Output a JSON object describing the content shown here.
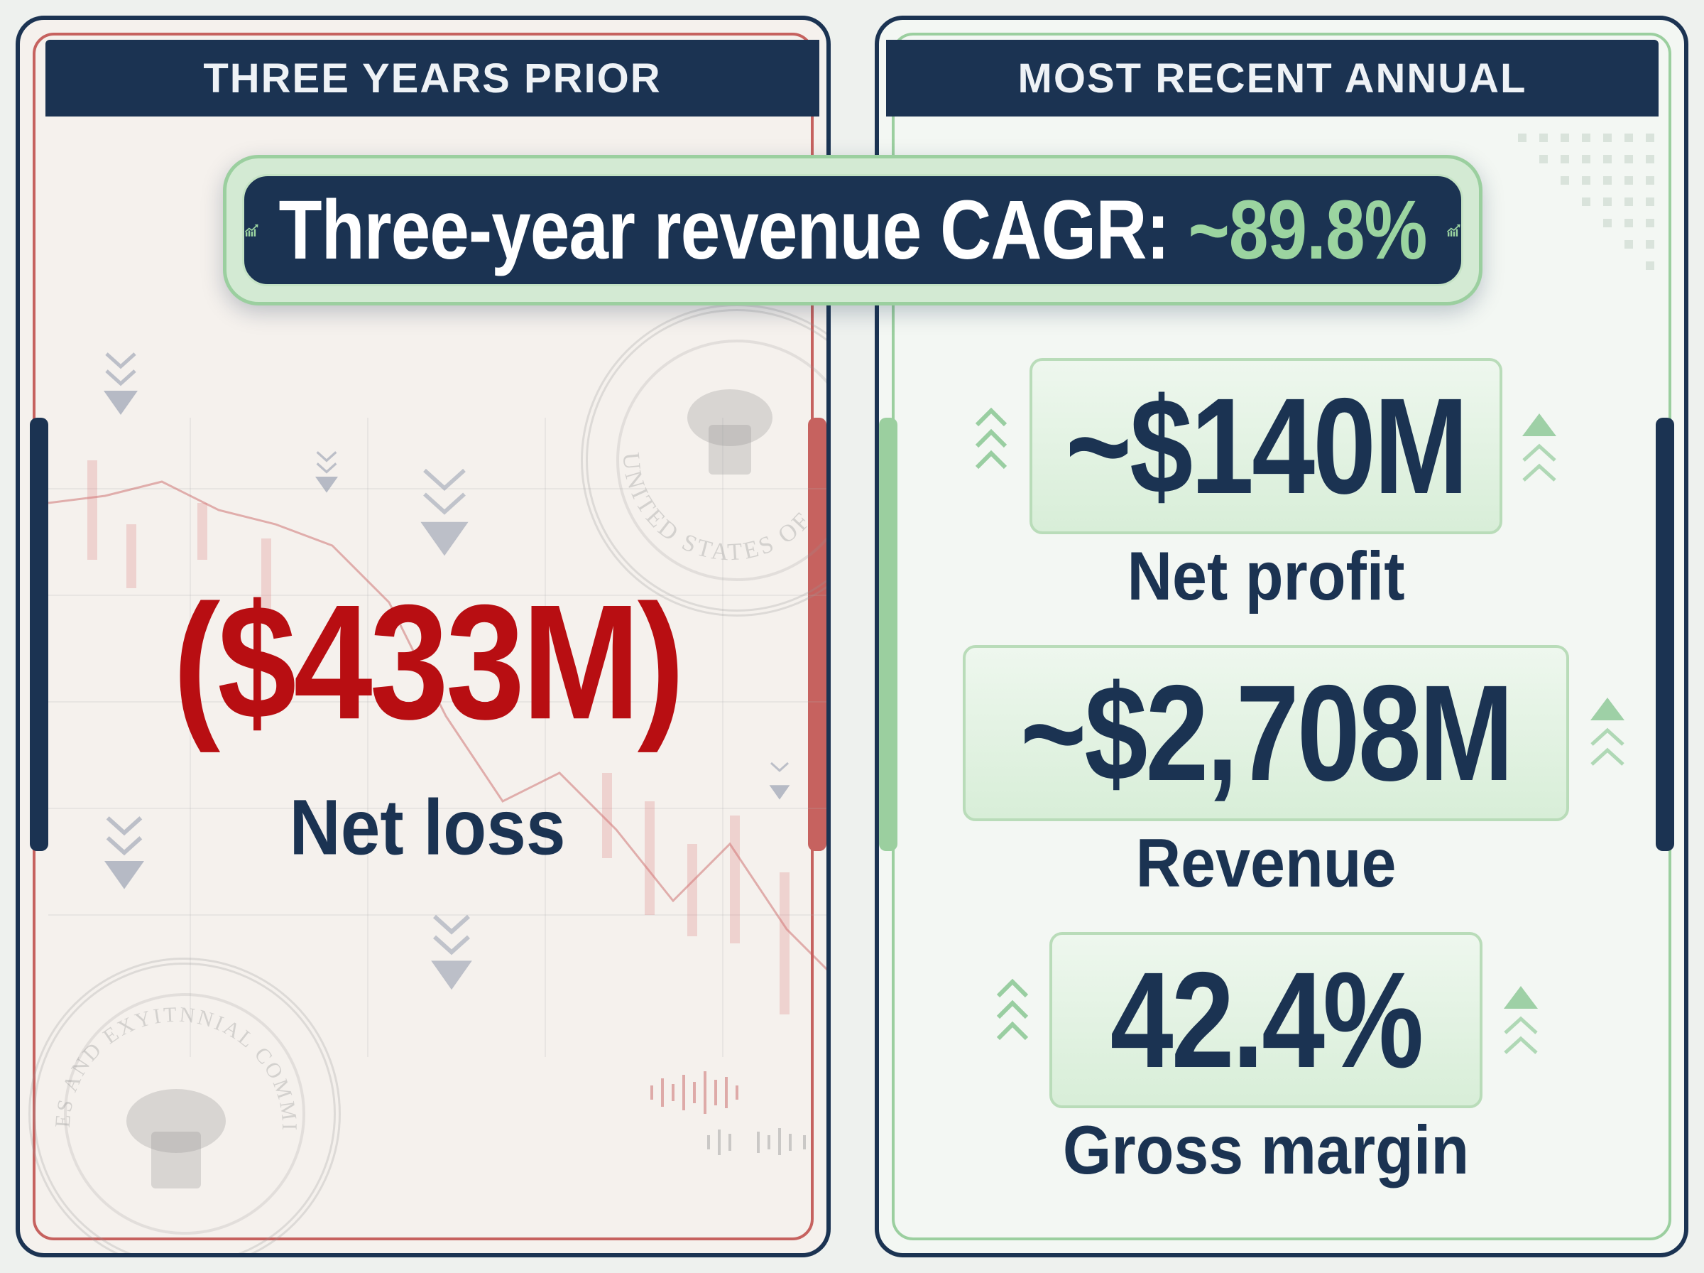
{
  "left_panel": {
    "header": "THREE YEARS PRIOR",
    "value": "($433M)",
    "label": "Net loss"
  },
  "right_panel": {
    "header": "MOST RECENT ANNUAL",
    "metrics": [
      {
        "value": "~$140M",
        "label": "Net profit"
      },
      {
        "value": "~$2,708M",
        "label": "Revenue"
      },
      {
        "value": "42.4%",
        "label": "Gross margin"
      }
    ]
  },
  "cagr_banner": {
    "label": "Three-year revenue CAGR:",
    "value": "~89.8%",
    "icon": "trending-up-icon"
  },
  "seal_text": {
    "top_seal": "UNITED STATES OF",
    "bottom_seal": "ES AND EXYITNNIAL COMMISSION"
  },
  "colors": {
    "navy": "#1b3352",
    "loss_red": "#b80e12",
    "gain_green": "#9bd4a0",
    "left_accent": "#c6625f",
    "right_accent": "#9bcf9f"
  }
}
